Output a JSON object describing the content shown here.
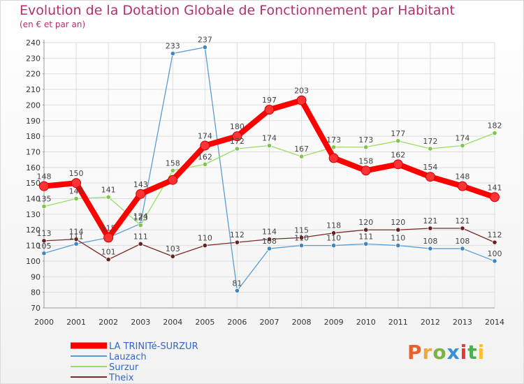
{
  "title": "Evolution de la Dotation Globale de Fonctionnement par Habitant",
  "subtitle": "(en € et par an)",
  "logo": {
    "letters": [
      "P",
      "r",
      "o",
      "x",
      "i",
      "t",
      "i"
    ]
  },
  "chart_data": {
    "type": "line",
    "x": [
      2000,
      2001,
      2002,
      2003,
      2004,
      2005,
      2006,
      2007,
      2008,
      2009,
      2010,
      2011,
      2012,
      2013,
      2014
    ],
    "ylim": [
      70,
      240
    ],
    "yticks": [
      70,
      80,
      90,
      100,
      110,
      120,
      130,
      140,
      150,
      160,
      170,
      180,
      190,
      200,
      210,
      220,
      230,
      240
    ],
    "grid": true,
    "legend_position": "bottom-left",
    "series": [
      {
        "name": "LA TRINITé-SURZUR",
        "color": "#ff0000",
        "marker": "#ff3333",
        "values": [
          148,
          150,
          115,
          143,
          152,
          174,
          180,
          197,
          203,
          166,
          158,
          162,
          154,
          148,
          141
        ],
        "labels": [
          "148",
          "150",
          "115",
          "143",
          "",
          "174",
          "180",
          "197",
          "203",
          "",
          "158",
          "162",
          "154",
          "148",
          "141"
        ]
      },
      {
        "name": "Lauzach",
        "color": "#5b9bd5",
        "marker": "#3d85c6",
        "values": [
          105,
          111,
          115,
          124,
          233,
          237,
          81,
          108,
          110,
          110,
          111,
          110,
          108,
          108,
          100
        ],
        "labels": [
          "105",
          "111",
          "",
          "124",
          "233",
          "237",
          "81",
          "108",
          "110",
          "110",
          "111",
          "110",
          "108",
          "108",
          "100"
        ]
      },
      {
        "name": "Surzur",
        "color": "#99dd66",
        "marker": "#7cc74a",
        "values": [
          135,
          140,
          141,
          123,
          158,
          162,
          172,
          174,
          167,
          173,
          173,
          177,
          172,
          174,
          182
        ],
        "labels": [
          "135",
          "140",
          "141",
          "123",
          "158",
          "162",
          "172",
          "174",
          "167",
          "173",
          "173",
          "177",
          "172",
          "174",
          "182"
        ]
      },
      {
        "name": "Theix",
        "color": "#7a2828",
        "marker": "#6b1f1f",
        "values": [
          113,
          114,
          101,
          111,
          103,
          110,
          112,
          114,
          115,
          118,
          120,
          120,
          121,
          121,
          112
        ],
        "labels": [
          "113",
          "114",
          "101",
          "111",
          "103",
          "110",
          "112",
          "114",
          "115",
          "118",
          "120",
          "120",
          "121",
          "121",
          "112"
        ]
      }
    ]
  }
}
